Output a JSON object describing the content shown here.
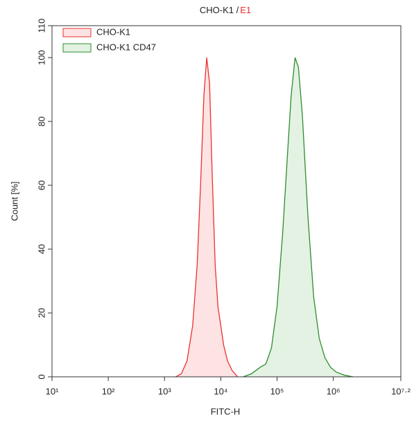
{
  "chart_data": {
    "type": "histogram-line",
    "title": "CHO-K1 /",
    "title_highlight": "E1",
    "xlabel": "FITC-H",
    "ylabel": "Count [%]",
    "xscale": "log",
    "xlim": [
      10,
      15848931.92
    ],
    "xticks": [
      {
        "value": 10,
        "label": "10¹"
      },
      {
        "value": 100,
        "label": "10²"
      },
      {
        "value": 1000,
        "label": "10³"
      },
      {
        "value": 10000,
        "label": "10⁴"
      },
      {
        "value": 100000,
        "label": "10⁵"
      },
      {
        "value": 1000000,
        "label": "10⁶"
      },
      {
        "value": 15848931.92,
        "label": "10⁷·²"
      }
    ],
    "ylim": [
      0,
      110
    ],
    "yticks": [
      0,
      20,
      40,
      60,
      80,
      100,
      110
    ],
    "legend": "upper left",
    "series": [
      {
        "name": "CHO-K1",
        "color": "#e8312f",
        "fill": "#fde3e3",
        "x": [
          1585,
          1995,
          2512,
          3162,
          3802,
          4365,
          5012,
          5623,
          6310,
          7079,
          7943,
          8913,
          10000,
          11220,
          13183,
          15849,
          19953
        ],
        "values": [
          0,
          1,
          5,
          16,
          35,
          60,
          88,
          100,
          92,
          62,
          35,
          22,
          16,
          10,
          5,
          2,
          0
        ]
      },
      {
        "name": "CHO-K1 CD47",
        "color": "#2e8b2e",
        "fill": "#e3f2e3",
        "x": [
          25119,
          35481,
          50119,
          63096,
          79433,
          100000,
          125893,
          151356,
          177828,
          208930,
          239883,
          281838,
          354813,
          446684,
          562341,
          707946,
          891251,
          1122018,
          1584893,
          2238721
        ],
        "values": [
          0,
          1,
          3,
          4,
          9,
          22,
          45,
          68,
          88,
          100,
          97,
          82,
          50,
          25,
          12,
          6,
          3,
          1.5,
          0.5,
          0
        ]
      }
    ]
  }
}
